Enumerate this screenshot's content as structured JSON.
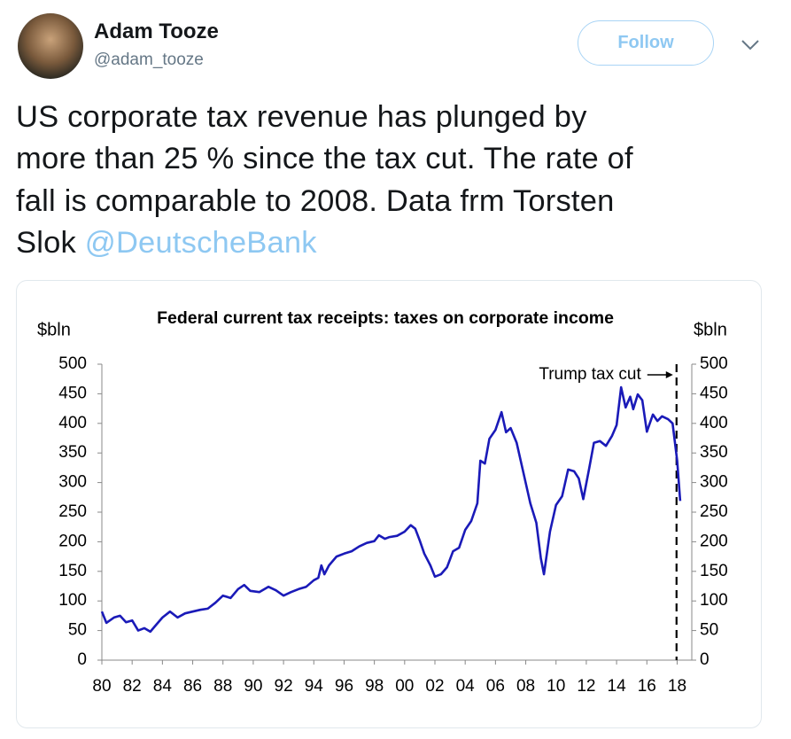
{
  "tweet": {
    "name": "Adam Tooze",
    "handle": "@adam_tooze",
    "follow": "Follow",
    "lines": [
      "US corporate tax revenue has plunged by",
      "more than 25 % since the tax cut. The rate of",
      "fall is comparable to 2008. Data frm Torsten",
      "Slok"
    ],
    "mention": "@DeutscheBank"
  },
  "chart_data": {
    "type": "line",
    "title": "Federal current tax receipts: taxes on corporate income",
    "ylabel": "$bln",
    "y2label": "$bln",
    "color": "#1a1ab8",
    "annotation": {
      "text": "Trump tax cut",
      "x": 2017.96
    },
    "x": [
      1980.0,
      1980.3,
      1980.8,
      1981.2,
      1981.6,
      1982.0,
      1982.4,
      1982.8,
      1983.2,
      1983.6,
      1984.0,
      1984.5,
      1985.0,
      1985.5,
      1986.0,
      1986.5,
      1987.0,
      1987.5,
      1988.0,
      1988.5,
      1989.0,
      1989.4,
      1989.8,
      1990.4,
      1991.0,
      1991.5,
      1992.0,
      1992.5,
      1993.0,
      1993.5,
      1994.0,
      1994.3,
      1994.5,
      1994.7,
      1995.0,
      1995.5,
      1996.0,
      1996.5,
      1997.0,
      1997.5,
      1998.0,
      1998.3,
      1998.7,
      1999.0,
      1999.5,
      2000.0,
      2000.4,
      2000.7,
      2001.0,
      2001.3,
      2001.7,
      2002.0,
      2002.4,
      2002.8,
      2003.2,
      2003.6,
      2004.0,
      2004.4,
      2004.8,
      2005.0,
      2005.3,
      2005.6,
      2006.0,
      2006.4,
      2006.7,
      2007.0,
      2007.4,
      2007.8,
      2008.3,
      2008.7,
      2009.0,
      2009.2,
      2009.6,
      2010.0,
      2010.4,
      2010.8,
      2011.2,
      2011.5,
      2011.8,
      2012.2,
      2012.5,
      2012.9,
      2013.3,
      2013.7,
      2014.0,
      2014.3,
      2014.6,
      2014.9,
      2015.1,
      2015.4,
      2015.7,
      2016.0,
      2016.4,
      2016.7,
      2017.0,
      2017.4,
      2017.7,
      2018.0,
      2018.2
    ],
    "values": [
      82,
      63,
      72,
      75,
      64,
      67,
      50,
      54,
      48,
      60,
      72,
      82,
      72,
      79,
      82,
      85,
      87,
      97,
      109,
      105,
      120,
      127,
      117,
      115,
      124,
      118,
      109,
      115,
      120,
      124,
      135,
      139,
      160,
      145,
      160,
      175,
      180,
      184,
      192,
      198,
      201,
      211,
      205,
      208,
      210,
      217,
      228,
      222,
      202,
      180,
      160,
      141,
      145,
      157,
      184,
      190,
      220,
      235,
      265,
      337,
      332,
      374,
      389,
      419,
      385,
      392,
      367,
      322,
      265,
      232,
      172,
      145,
      217,
      262,
      277,
      322,
      319,
      307,
      272,
      325,
      367,
      370,
      362,
      379,
      397,
      461,
      427,
      445,
      424,
      449,
      439,
      386,
      415,
      404,
      412,
      407,
      400,
      337,
      269
    ],
    "xlim": [
      1980,
      2018.5
    ],
    "xticks": [
      {
        "value": 1980,
        "label": "80"
      },
      {
        "value": 1982,
        "label": "82"
      },
      {
        "value": 1984,
        "label": "84"
      },
      {
        "value": 1986,
        "label": "86"
      },
      {
        "value": 1988,
        "label": "88"
      },
      {
        "value": 1990,
        "label": "90"
      },
      {
        "value": 1992,
        "label": "92"
      },
      {
        "value": 1994,
        "label": "94"
      },
      {
        "value": 1996,
        "label": "96"
      },
      {
        "value": 1998,
        "label": "98"
      },
      {
        "value": 2000,
        "label": "00"
      },
      {
        "value": 2002,
        "label": "02"
      },
      {
        "value": 2004,
        "label": "04"
      },
      {
        "value": 2006,
        "label": "06"
      },
      {
        "value": 2008,
        "label": "08"
      },
      {
        "value": 2010,
        "label": "10"
      },
      {
        "value": 2012,
        "label": "12"
      },
      {
        "value": 2014,
        "label": "14"
      },
      {
        "value": 2016,
        "label": "16"
      },
      {
        "value": 2018,
        "label": "18"
      }
    ],
    "ylim": [
      0,
      500
    ],
    "yticks": [
      0,
      50,
      100,
      150,
      200,
      250,
      300,
      350,
      400,
      450,
      500
    ],
    "y2lim": [
      0,
      500
    ],
    "y2ticks": [
      0,
      50,
      100,
      150,
      200,
      250,
      300,
      350,
      400,
      450,
      500
    ]
  }
}
